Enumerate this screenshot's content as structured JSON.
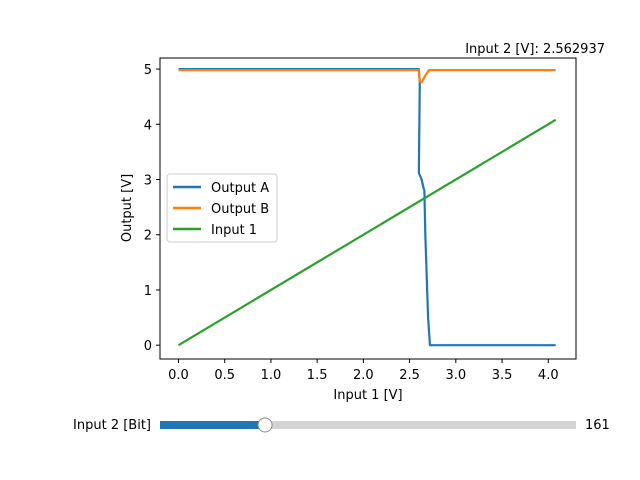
{
  "chart_data": {
    "type": "line",
    "title": "Input 2 [V]: 2.562937",
    "xlabel": "Input 1 [V]",
    "ylabel": "Output [V]",
    "xlim": [
      -0.2,
      4.3
    ],
    "ylim": [
      -0.25,
      5.2
    ],
    "xticks": [
      0.0,
      0.5,
      1.0,
      1.5,
      2.0,
      2.5,
      3.0,
      3.5,
      4.0
    ],
    "xtick_labels": [
      "0.0",
      "0.5",
      "1.0",
      "1.5",
      "2.0",
      "2.5",
      "3.0",
      "3.5",
      "4.0"
    ],
    "yticks": [
      0,
      1,
      2,
      3,
      4,
      5
    ],
    "ytick_labels": [
      "0",
      "1",
      "2",
      "3",
      "4",
      "5"
    ],
    "grid": false,
    "legend_position": "center-left",
    "series": [
      {
        "name": "Output A",
        "color": "#1f77b4",
        "points": [
          [
            0,
            5.0
          ],
          [
            2.6,
            5.0
          ],
          [
            2.61,
            4.75
          ],
          [
            2.6,
            3.12
          ],
          [
            2.63,
            3.0
          ],
          [
            2.65,
            2.85
          ],
          [
            2.66,
            2.8
          ],
          [
            2.67,
            2.0
          ],
          [
            2.68,
            1.5
          ],
          [
            2.7,
            0.5
          ],
          [
            2.72,
            0.0
          ],
          [
            4.08,
            0.0
          ]
        ]
      },
      {
        "name": "Output B",
        "color": "#ff7f0e",
        "points": [
          [
            0,
            4.98
          ],
          [
            2.6,
            4.98
          ],
          [
            2.61,
            4.78
          ],
          [
            2.63,
            4.76
          ],
          [
            2.67,
            4.88
          ],
          [
            2.71,
            4.98
          ],
          [
            4.08,
            4.98
          ]
        ]
      },
      {
        "name": "Input 1",
        "color": "#2ca02c",
        "points": [
          [
            0,
            0.0
          ],
          [
            4.08,
            4.08
          ]
        ]
      }
    ]
  },
  "slider": {
    "label": "Input 2 [Bit]",
    "value_text": "161",
    "fraction": 0.2526,
    "fill_color": "#1f77b4",
    "track_color": "#d3d3d3"
  }
}
